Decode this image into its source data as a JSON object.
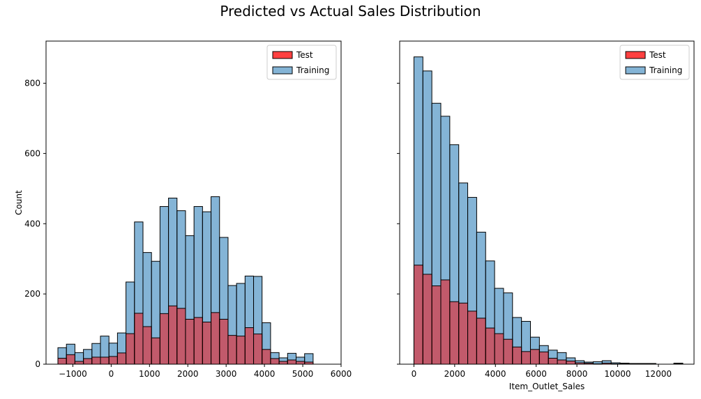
{
  "figure": {
    "title": "Predicted vs Actual Sales Distribution"
  },
  "colors": {
    "test": "#ff0000",
    "training": "#1f77b4",
    "edge": "#000000"
  },
  "chart_data": [
    {
      "type": "histogram",
      "xlabel": "",
      "ylabel": "Count",
      "xlim": [
        -1700,
        6000
      ],
      "ylim": [
        0,
        920
      ],
      "xticks": [
        -1000,
        0,
        1000,
        2000,
        3000,
        4000,
        5000,
        6000
      ],
      "yticks": [
        0,
        200,
        400,
        600,
        800
      ],
      "legend": {
        "position": "top-right",
        "entries": [
          "Test",
          "Training"
        ]
      },
      "bin_start": -1390,
      "bin_width": 222,
      "series": [
        {
          "name": "Training",
          "counts": [
            47,
            57,
            33,
            42,
            59,
            80,
            60,
            89,
            234,
            405,
            318,
            293,
            449,
            473,
            437,
            366,
            449,
            434,
            477,
            361,
            224,
            230,
            251,
            250,
            118,
            33,
            18,
            31,
            20,
            30
          ]
        },
        {
          "name": "Test",
          "counts": [
            17,
            27,
            8,
            16,
            20,
            20,
            22,
            32,
            87,
            145,
            107,
            75,
            144,
            166,
            159,
            128,
            133,
            120,
            147,
            128,
            82,
            80,
            104,
            86,
            42,
            16,
            8,
            12,
            8,
            6
          ]
        }
      ]
    },
    {
      "type": "histogram",
      "xlabel": "Item_Outlet_Sales",
      "ylabel": "",
      "xlim": [
        -700,
        13750
      ],
      "ylim": [
        0,
        920
      ],
      "xticks": [
        0,
        2000,
        4000,
        6000,
        8000,
        10000,
        12000
      ],
      "yticks": [
        0,
        200,
        400,
        600,
        800
      ],
      "legend": {
        "position": "top-right",
        "entries": [
          "Test",
          "Training"
        ]
      },
      "bin_start": 0,
      "bin_width": 440,
      "series": [
        {
          "name": "Training",
          "counts": [
            875,
            835,
            743,
            706,
            625,
            516,
            475,
            376,
            294,
            216,
            203,
            133,
            122,
            77,
            53,
            40,
            33,
            18,
            10,
            6,
            7,
            10,
            4,
            3,
            2,
            2,
            2,
            0,
            0,
            3
          ]
        },
        {
          "name": "Test",
          "counts": [
            282,
            256,
            223,
            240,
            178,
            174,
            151,
            131,
            103,
            87,
            71,
            49,
            36,
            42,
            35,
            17,
            12,
            9,
            4,
            3,
            1,
            3,
            1,
            1,
            0,
            0,
            0,
            0,
            0,
            1
          ]
        }
      ]
    }
  ]
}
